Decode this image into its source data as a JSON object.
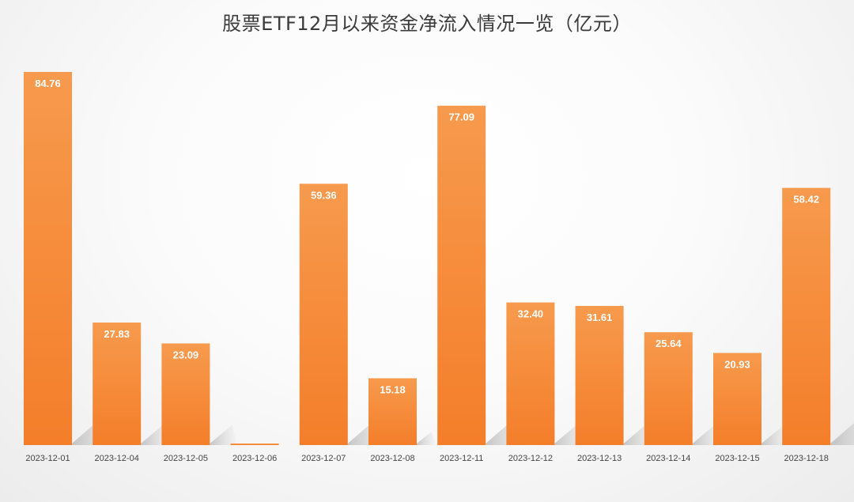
{
  "chart_data": {
    "type": "bar",
    "title": "股票ETF12月以来资金净流入情况一览（亿元）",
    "categories": [
      "2023-12-01",
      "2023-12-04",
      "2023-12-05",
      "2023-12-06",
      "2023-12-07",
      "2023-12-08",
      "2023-12-11",
      "2023-12-12",
      "2023-12-13",
      "2023-12-14",
      "2023-12-15",
      "2023-12-18"
    ],
    "values": [
      84.76,
      27.83,
      23.09,
      0.0,
      59.36,
      15.18,
      77.09,
      32.4,
      31.61,
      25.64,
      20.93,
      58.42
    ],
    "value_labels": [
      "84.76",
      "27.83",
      "23.09",
      "",
      "59.36",
      "15.18",
      "77.09",
      "32.40",
      "31.61",
      "25.64",
      "20.93",
      "58.42"
    ],
    "bar_color": "#f47e2a",
    "bar_color_light": "#f79a4d",
    "ylim": [
      0,
      84.76
    ],
    "grid": false,
    "legend": "none",
    "xlabel": "",
    "ylabel": ""
  }
}
